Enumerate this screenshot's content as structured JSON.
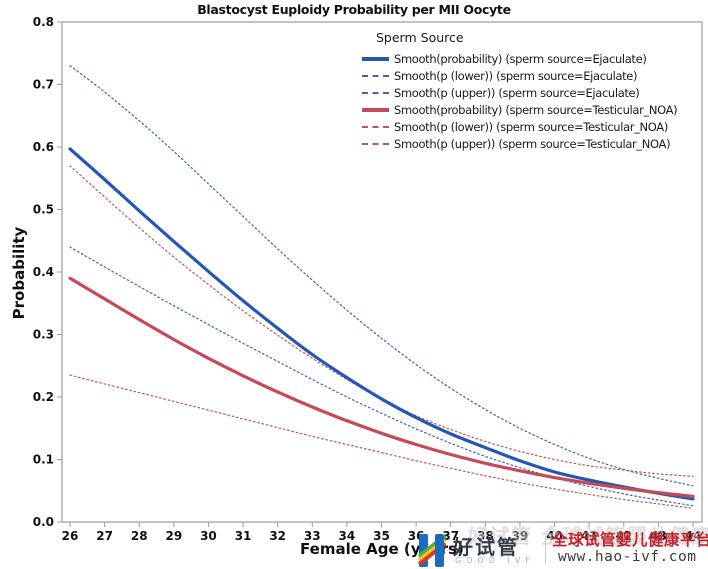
{
  "chart_data": {
    "type": "line",
    "title": "Blastocyst Euploidy Probability per MII Oocyte",
    "xlabel": "Female Age (years)",
    "ylabel": "Probability",
    "xlim": [
      26,
      44
    ],
    "ylim": [
      0,
      0.8
    ],
    "xticks": [
      26,
      27,
      28,
      29,
      30,
      31,
      32,
      33,
      34,
      35,
      36,
      37,
      38,
      39,
      40,
      41,
      42,
      43,
      44
    ],
    "yticks": [
      0.0,
      0.1,
      0.2,
      0.3,
      0.4,
      0.5,
      0.6,
      0.7,
      0.8
    ],
    "grid": false,
    "legend_title": "Sperm Source",
    "legend_position": "top-right-inside",
    "x": [
      26,
      27,
      28,
      29,
      30,
      31,
      32,
      33,
      34,
      35,
      36,
      37,
      38,
      39,
      40,
      41,
      42,
      43,
      44
    ],
    "series": [
      {
        "name": "Smooth(probability) (sperm source=Ejaculate)",
        "style": "solid",
        "color": "#2356b5",
        "values": [
          0.597,
          0.548,
          0.498,
          0.449,
          0.401,
          0.354,
          0.31,
          0.268,
          0.231,
          0.197,
          0.167,
          0.141,
          0.119,
          0.098,
          0.08,
          0.067,
          0.056,
          0.046,
          0.037
        ]
      },
      {
        "name": "Smooth(p (lower)) (sperm source=Ejaculate)",
        "style": "dotted",
        "color": "#3f62a8",
        "values": [
          0.44,
          0.408,
          0.377,
          0.346,
          0.316,
          0.286,
          0.257,
          0.228,
          0.2,
          0.174,
          0.149,
          0.126,
          0.105,
          0.087,
          0.071,
          0.057,
          0.045,
          0.035,
          0.026
        ]
      },
      {
        "name": "Smooth(p (upper)) (sperm source=Ejaculate)",
        "style": "dotted",
        "color": "#3f62a8",
        "values": [
          0.73,
          0.688,
          0.642,
          0.593,
          0.541,
          0.489,
          0.437,
          0.387,
          0.339,
          0.294,
          0.252,
          0.214,
          0.18,
          0.15,
          0.124,
          0.102,
          0.084,
          0.07,
          0.058
        ]
      },
      {
        "name": "Smooth(probability) (sperm source=Testicular_NOA)",
        "style": "solid",
        "color": "#c54a55",
        "values": [
          0.39,
          0.357,
          0.324,
          0.292,
          0.262,
          0.234,
          0.208,
          0.184,
          0.162,
          0.142,
          0.124,
          0.108,
          0.094,
          0.082,
          0.071,
          0.062,
          0.054,
          0.047,
          0.041
        ]
      },
      {
        "name": "Smooth(p (lower)) (sperm source=Testicular_NOA)",
        "style": "dotted",
        "color": "#c2545f",
        "values": [
          0.235,
          0.221,
          0.207,
          0.193,
          0.179,
          0.165,
          0.151,
          0.137,
          0.124,
          0.111,
          0.098,
          0.086,
          0.074,
          0.063,
          0.053,
          0.044,
          0.036,
          0.029,
          0.022
        ]
      },
      {
        "name": "Smooth(p (upper)) (sperm source=Testicular_NOA)",
        "style": "dotted",
        "color": "#c2545f",
        "values": [
          0.57,
          0.52,
          0.471,
          0.424,
          0.38,
          0.338,
          0.299,
          0.262,
          0.228,
          0.197,
          0.17,
          0.148,
          0.129,
          0.113,
          0.1,
          0.09,
          0.083,
          0.077,
          0.073
        ]
      }
    ]
  },
  "watermark": {
    "brand": "好试管",
    "brand_sub": "GOOD IVF",
    "tagline": "全球试管婴儿健康平台",
    "url": "www.hao-ivf.com",
    "ghost_text": "好试管 全球试管婴儿健康平台",
    "colors": {
      "logo_blue": "#1b6bbf",
      "tagline_red": "#c4232e",
      "brand_dark": "#333d49"
    }
  }
}
